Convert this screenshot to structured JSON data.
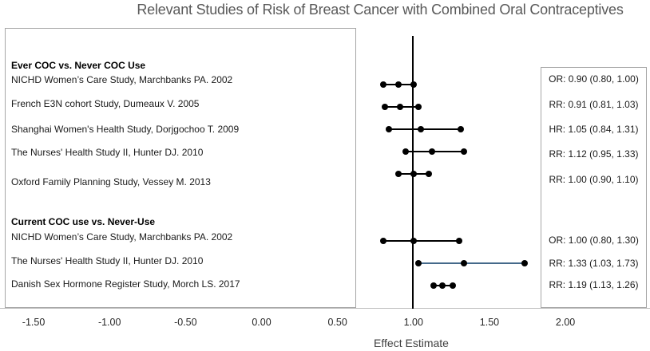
{
  "title": "Relevant Studies of Risk of Breast Cancer with Combined Oral Contraceptives",
  "colors": {
    "title_text": "#595959",
    "axis_line": "#bfbfbf",
    "panel_border": "#a6a6a6",
    "default_series": "#000000",
    "highlight_series": "#44698a",
    "marker": "#000000",
    "tick_text": "#262626",
    "axis_title_text": "#404040"
  },
  "chart_data": {
    "type": "scatter",
    "subtype": "forest-plot",
    "title": "Relevant Studies of Risk of Breast Cancer with Combined Oral Contraceptives",
    "xlabel": "Effect Estimate",
    "xlim": [
      -1.75,
      2.55
    ],
    "x_ticks": [
      -1.5,
      -1.0,
      -0.5,
      0.0,
      0.5,
      1.0,
      1.5,
      2.0
    ],
    "x_tick_labels": [
      "-1.50",
      "-1.00",
      "-0.50",
      "0.00",
      "0.50",
      "1.00",
      "1.50",
      "2.00"
    ],
    "reference_line_x": 1.0,
    "grid": false,
    "legend": false,
    "groups": [
      {
        "header": "Ever COC vs. Never COC Use",
        "studies": [
          {
            "label": "NICHD Women’s Care Study, Marchbanks PA. 2002",
            "measure": "OR",
            "estimate": 0.9,
            "ci_lower": 0.8,
            "ci_upper": 1.0,
            "annotation": "OR: 0.90 (0.80, 1.00)",
            "highlight": false
          },
          {
            "label": "French E3N cohort Study, Dumeaux V. 2005",
            "measure": "RR",
            "estimate": 0.91,
            "ci_lower": 0.81,
            "ci_upper": 1.03,
            "annotation": "RR: 0.91 (0.81, 1.03)",
            "highlight": false
          },
          {
            "label": "Shanghai Women's Health Study, Dorjgochoo T. 2009",
            "measure": "HR",
            "estimate": 1.05,
            "ci_lower": 0.84,
            "ci_upper": 1.31,
            "annotation": "HR: 1.05 (0.84, 1.31)",
            "highlight": false
          },
          {
            "label": "The Nurses' Health Study II, Hunter DJ. 2010",
            "measure": "RR",
            "estimate": 1.12,
            "ci_lower": 0.95,
            "ci_upper": 1.33,
            "annotation": "RR: 1.12 (0.95, 1.33)",
            "highlight": false
          },
          {
            "label": "Oxford Family Planning Study, Vessey M. 2013",
            "measure": "RR",
            "estimate": 1.0,
            "ci_lower": 0.9,
            "ci_upper": 1.1,
            "annotation": "RR: 1.00 (0.90, 1.10)",
            "highlight": false
          }
        ]
      },
      {
        "header": "Current COC use vs. Never-Use",
        "studies": [
          {
            "label": "NICHD Women’s Care Study, Marchbanks PA. 2002",
            "measure": "OR",
            "estimate": 1.0,
            "ci_lower": 0.8,
            "ci_upper": 1.3,
            "annotation": "OR: 1.00 (0.80, 1.30)",
            "highlight": false
          },
          {
            "label": "The Nurses' Health Study II, Hunter DJ. 2010",
            "measure": "RR",
            "estimate": 1.33,
            "ci_lower": 1.03,
            "ci_upper": 1.73,
            "annotation": "RR: 1.33 (1.03, 1.73)",
            "highlight": true
          },
          {
            "label": "Danish Sex Hormone Register Study, Morch LS. 2017",
            "measure": "RR",
            "estimate": 1.19,
            "ci_lower": 1.13,
            "ci_upper": 1.26,
            "annotation": "RR: 1.19 (1.13, 1.26)",
            "highlight": false
          }
        ]
      }
    ]
  }
}
